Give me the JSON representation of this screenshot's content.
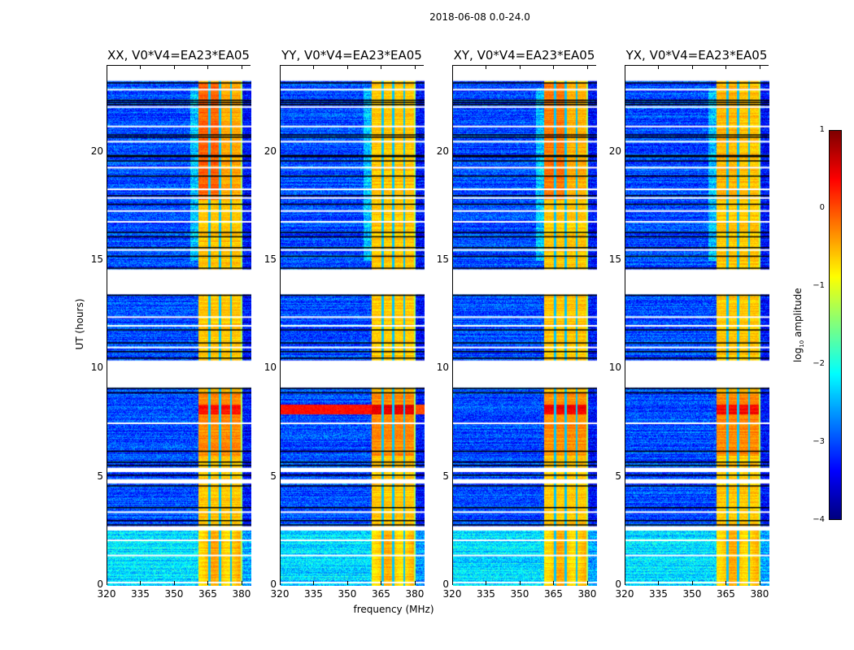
{
  "chart_data": {
    "type": "heatmap",
    "title": "2018-06-08 0.0-24.0",
    "xlabel": "frequency (MHz)",
    "ylabel": "UT (hours)",
    "xlim": [
      320,
      384
    ],
    "ylim": [
      0,
      24
    ],
    "xticks": [
      "320",
      "335",
      "350",
      "365",
      "380"
    ],
    "xtick_values": [
      320,
      335,
      350,
      365,
      380
    ],
    "yticks": [
      "0",
      "5",
      "10",
      "15",
      "20"
    ],
    "ytick_values": [
      0,
      5,
      10,
      15,
      20
    ],
    "panels": [
      {
        "title": "XX, V0*V4=EA23*EA05",
        "band_level": -0.6,
        "late_boost": 0.5,
        "spike_8h": 0.6,
        "spike_8h_full_band": false
      },
      {
        "title": "YY, V0*V4=EA23*EA05",
        "band_level": -0.6,
        "late_boost": 0.0,
        "spike_8h": 0.8,
        "spike_8h_full_band": true
      },
      {
        "title": "XY, V0*V4=EA23*EA05",
        "band_level": -0.6,
        "late_boost": 0.4,
        "spike_8h": 0.7,
        "spike_8h_full_band": false
      },
      {
        "title": "YX, V0*V4=EA23*EA05",
        "band_level": -0.6,
        "late_boost": 0.1,
        "spike_8h": 0.7,
        "spike_8h_full_band": false
      }
    ],
    "background_level": -3.0,
    "early_background_level": -2.3,
    "early_period_hours": [
      0,
      2.6
    ],
    "bright_band_mhz": [
      360.5,
      380
    ],
    "subband_edges_mhz": [
      365.3,
      370,
      375
    ],
    "flagged_gaps_hours": [
      [
        23.3,
        24
      ],
      [
        13.45,
        14.6
      ],
      [
        9.15,
        10.4
      ],
      [
        5.25,
        5.45
      ],
      [
        4.72,
        4.92
      ],
      [
        2.55,
        2.75
      ]
    ],
    "black_lines_hours": [
      23.2,
      22.4,
      22.3,
      22.2,
      20.8,
      20.7,
      19.85,
      19.8,
      19.6,
      18.9,
      18.0,
      17.6,
      16.3,
      16.1,
      15.6,
      15.2,
      14.65,
      13.4,
      11.8,
      11.2,
      10.8,
      10.5,
      9.1,
      8.9,
      6.2,
      5.7,
      5.55,
      5.1,
      4.6,
      3.6,
      3.0,
      2.8
    ],
    "white_lines_hours": [
      22.9,
      22.1,
      21.2,
      20.5,
      19.3,
      18.3,
      17.9,
      17.3,
      16.8,
      15.5,
      12.4,
      12.0,
      11.0,
      7.5,
      4.8,
      3.4,
      2.1,
      1.4,
      0.15
    ],
    "colorbar": {
      "label": "log10 amplitude",
      "label_main": "log",
      "label_sub": "10",
      "label_rest": " amplitude",
      "range": [
        -4,
        1
      ],
      "colormap": "jet",
      "ticks": [
        "1",
        "0",
        "−1",
        "−2",
        "−3",
        "−4"
      ],
      "tick_values": [
        1,
        0,
        -1,
        -2,
        -3,
        -4
      ]
    }
  }
}
